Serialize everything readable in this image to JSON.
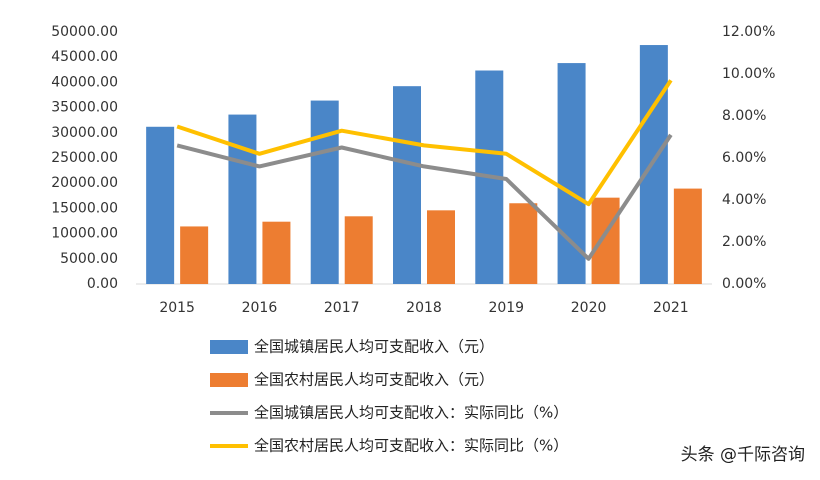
{
  "chart_data": {
    "type": "bar-line",
    "categories": [
      "2015",
      "2016",
      "2017",
      "2018",
      "2019",
      "2020",
      "2021"
    ],
    "series": [
      {
        "name": "全国城镇居民人均可支配收入（元）",
        "type": "bar",
        "color": "#4a86c8",
        "values": [
          31195,
          33616,
          36396,
          39251,
          42359,
          43834,
          47412
        ]
      },
      {
        "name": "全国农村居民人均可支配收入（元）",
        "type": "bar",
        "color": "#ed7d31",
        "values": [
          11422,
          12363,
          13432,
          14617,
          16021,
          17131,
          18931
        ]
      },
      {
        "name": "全国城镇居民人均可支配收入：实际同比（%）",
        "type": "line",
        "axis": "y2",
        "color": "#8c8c8c",
        "values": [
          6.6,
          5.6,
          6.5,
          5.6,
          5.0,
          1.2,
          7.1
        ]
      },
      {
        "name": "全国农村居民人均可支配收入：实际同比（%）",
        "type": "line",
        "axis": "y2",
        "color": "#ffc000",
        "values": [
          7.5,
          6.2,
          7.3,
          6.6,
          6.2,
          3.8,
          9.7
        ]
      }
    ],
    "ylim": [
      0,
      50000
    ],
    "yticks": [
      {
        "value": 0,
        "label": "0.00"
      },
      {
        "value": 5000,
        "label": "5000.00"
      },
      {
        "value": 10000,
        "label": "10000.00"
      },
      {
        "value": 15000,
        "label": "15000.00"
      },
      {
        "value": 20000,
        "label": "20000.00"
      },
      {
        "value": 25000,
        "label": "25000.00"
      },
      {
        "value": 30000,
        "label": "30000.00"
      },
      {
        "value": 35000,
        "label": "35000.00"
      },
      {
        "value": 40000,
        "label": "40000.00"
      },
      {
        "value": 45000,
        "label": "45000.00"
      },
      {
        "value": 50000,
        "label": "50000.00"
      }
    ],
    "y2lim": [
      0,
      12
    ],
    "y2ticks": [
      {
        "value": 0,
        "label": "0.00%"
      },
      {
        "value": 2,
        "label": "2.00%"
      },
      {
        "value": 4,
        "label": "4.00%"
      },
      {
        "value": 6,
        "label": "6.00%"
      },
      {
        "value": 8,
        "label": "8.00%"
      },
      {
        "value": 10,
        "label": "10.00%"
      },
      {
        "value": 12,
        "label": "12.00%"
      }
    ],
    "grid": false,
    "watermark": "头条 @千际咨询"
  }
}
